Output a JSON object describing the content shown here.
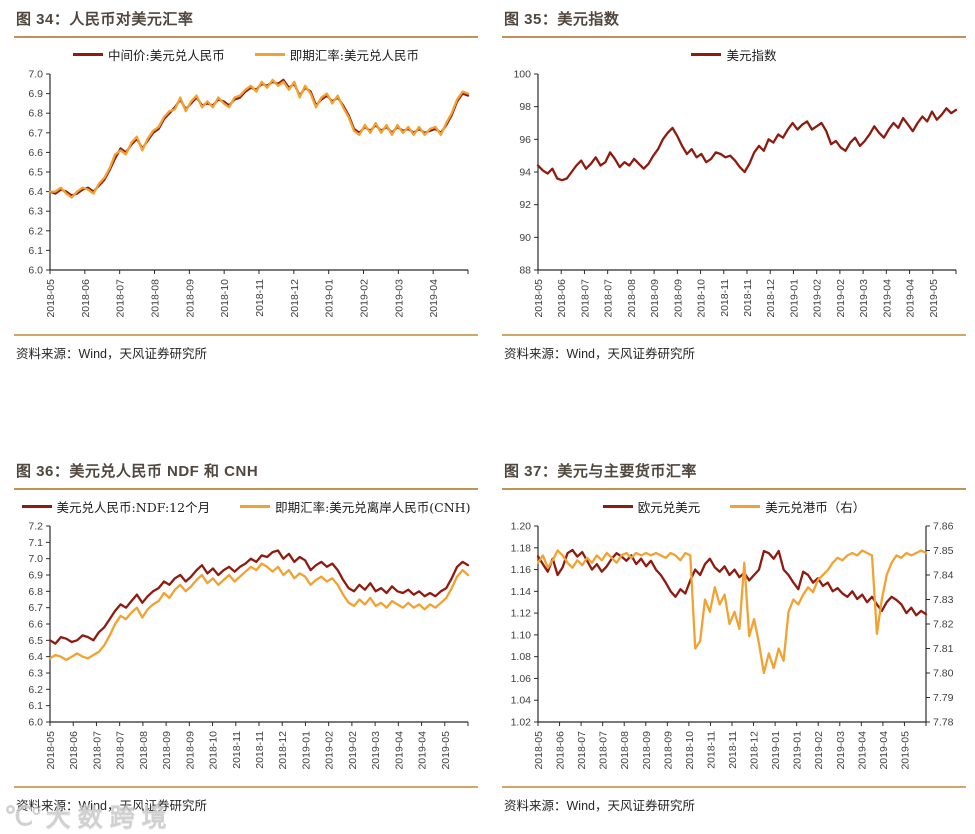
{
  "meta": {
    "source_text": "资料来源：Wind，天风证券研究所",
    "watermark_icon": "℃°",
    "watermark_text": "大数跨境"
  },
  "colors": {
    "dark_red": "#8E1B10",
    "orange": "#F2A232",
    "title_text": "#4F463E",
    "rule_top": "#BE9355",
    "rule_bottom": "#CFA869",
    "axis_line": "#2b2b2b",
    "axis_text": "#3F3F3F"
  },
  "chart_data": [
    {
      "type": "line",
      "figure_label": "图 34：人民币对美元汇率",
      "ylim": [
        6.0,
        7.0
      ],
      "yticks": [
        "7.0",
        "6.9",
        "6.8",
        "6.7",
        "6.6",
        "6.5",
        "6.4",
        "6.3",
        "6.2",
        "6.1",
        "6.0"
      ],
      "x_tick_labels": [
        "2018-05",
        "2018-06",
        "2018-07",
        "2018-08",
        "2018-09",
        "2018-10",
        "2018-11",
        "2018-12",
        "2019-01",
        "2019-02",
        "2019-03",
        "2019-04"
      ],
      "legend_position": "top",
      "grid": false,
      "series": [
        {
          "name": "中间价:美元兑人民币",
          "color": "#8E1B10",
          "axis": "left",
          "values": [
            6.4,
            6.39,
            6.41,
            6.4,
            6.38,
            6.39,
            6.41,
            6.42,
            6.4,
            6.43,
            6.46,
            6.51,
            6.57,
            6.62,
            6.6,
            6.64,
            6.67,
            6.62,
            6.66,
            6.7,
            6.72,
            6.77,
            6.8,
            6.83,
            6.87,
            6.82,
            6.85,
            6.88,
            6.84,
            6.85,
            6.84,
            6.87,
            6.86,
            6.84,
            6.87,
            6.88,
            6.91,
            6.93,
            6.92,
            6.95,
            6.94,
            6.96,
            6.95,
            6.97,
            6.93,
            6.95,
            6.89,
            6.93,
            6.91,
            6.84,
            6.87,
            6.89,
            6.86,
            6.88,
            6.84,
            6.79,
            6.72,
            6.7,
            6.73,
            6.71,
            6.74,
            6.71,
            6.73,
            6.7,
            6.73,
            6.71,
            6.72,
            6.7,
            6.72,
            6.7,
            6.71,
            6.72,
            6.7,
            6.74,
            6.79,
            6.86,
            6.9,
            6.89
          ]
        },
        {
          "name": "即期汇率:美元兑人民币",
          "color": "#F2A232",
          "axis": "left",
          "values": [
            6.4,
            6.4,
            6.42,
            6.39,
            6.37,
            6.4,
            6.42,
            6.41,
            6.39,
            6.44,
            6.47,
            6.52,
            6.59,
            6.61,
            6.59,
            6.65,
            6.68,
            6.61,
            6.67,
            6.71,
            6.73,
            6.78,
            6.81,
            6.82,
            6.88,
            6.81,
            6.86,
            6.89,
            6.83,
            6.86,
            6.83,
            6.88,
            6.85,
            6.83,
            6.88,
            6.89,
            6.92,
            6.94,
            6.91,
            6.96,
            6.93,
            6.97,
            6.94,
            6.96,
            6.92,
            6.96,
            6.88,
            6.94,
            6.9,
            6.83,
            6.88,
            6.9,
            6.85,
            6.89,
            6.83,
            6.78,
            6.71,
            6.69,
            6.74,
            6.7,
            6.75,
            6.7,
            6.74,
            6.69,
            6.74,
            6.7,
            6.73,
            6.69,
            6.73,
            6.69,
            6.72,
            6.73,
            6.69,
            6.75,
            6.8,
            6.87,
            6.91,
            6.9
          ]
        }
      ]
    },
    {
      "type": "line",
      "figure_label": "图 35：美元指数",
      "ylim": [
        88,
        100
      ],
      "yticks": [
        "100",
        "98",
        "96",
        "94",
        "92",
        "90",
        "88"
      ],
      "x_tick_labels": [
        "2018-05",
        "2018-06",
        "2018-07",
        "2018-07",
        "2018-08",
        "2018-09",
        "2018-09",
        "2018-10",
        "2018-11",
        "2018-11",
        "2018-12",
        "2019-01",
        "2019-02",
        "2019-02",
        "2019-03",
        "2019-04",
        "2019-04",
        "2019-05"
      ],
      "legend_position": "top",
      "grid": false,
      "series": [
        {
          "name": "美元指数",
          "color": "#8E1B10",
          "axis": "left",
          "values": [
            94.4,
            94.1,
            93.9,
            94.2,
            93.6,
            93.5,
            93.6,
            94.0,
            94.4,
            94.7,
            94.2,
            94.5,
            94.9,
            94.4,
            94.6,
            95.2,
            94.8,
            94.3,
            94.6,
            94.4,
            94.8,
            94.5,
            94.2,
            94.5,
            95.0,
            95.4,
            96.0,
            96.4,
            96.7,
            96.2,
            95.6,
            95.1,
            95.4,
            94.9,
            95.1,
            94.6,
            94.8,
            95.2,
            95.1,
            94.9,
            95.0,
            94.7,
            94.3,
            94.0,
            94.5,
            95.2,
            95.6,
            95.3,
            96.0,
            95.8,
            96.3,
            96.1,
            96.6,
            97.0,
            96.6,
            96.9,
            97.1,
            96.6,
            96.8,
            97.0,
            96.5,
            95.7,
            95.9,
            95.5,
            95.3,
            95.8,
            96.1,
            95.6,
            95.9,
            96.3,
            96.8,
            96.4,
            96.1,
            96.6,
            97.0,
            96.7,
            97.3,
            96.9,
            96.5,
            97.0,
            97.4,
            97.1,
            97.7,
            97.2,
            97.5,
            97.9,
            97.6,
            97.8
          ]
        }
      ]
    },
    {
      "type": "line",
      "figure_label": "图 36：美元兑人民币 NDF  和 CNH",
      "ylim": [
        6.0,
        7.2
      ],
      "yticks": [
        "7.2",
        "7.1",
        "7.0",
        "6.9",
        "6.8",
        "6.7",
        "6.6",
        "6.5",
        "6.4",
        "6.3",
        "6.2",
        "6.1",
        "6.0"
      ],
      "x_tick_labels": [
        "2018-05",
        "2018-06",
        "2018-07",
        "2018-07",
        "2018-08",
        "2018-09",
        "2018-09",
        "2018-10",
        "2018-11",
        "2018-11",
        "2018-12",
        "2019-01",
        "2019-02",
        "2019-02",
        "2019-03",
        "2019-04",
        "2019-04",
        "2019-05"
      ],
      "legend_position": "top",
      "grid": false,
      "series": [
        {
          "name": "美元兑人民币:NDF:12个月",
          "color": "#8E1B10",
          "axis": "left",
          "values": [
            6.5,
            6.48,
            6.52,
            6.51,
            6.49,
            6.5,
            6.53,
            6.52,
            6.5,
            6.55,
            6.58,
            6.63,
            6.68,
            6.72,
            6.7,
            6.74,
            6.78,
            6.73,
            6.77,
            6.8,
            6.82,
            6.86,
            6.84,
            6.88,
            6.9,
            6.86,
            6.89,
            6.93,
            6.96,
            6.91,
            6.94,
            6.9,
            6.93,
            6.95,
            6.92,
            6.95,
            6.97,
            7.0,
            6.98,
            7.02,
            7.01,
            7.04,
            7.05,
            7.0,
            7.03,
            6.98,
            7.01,
            6.99,
            6.93,
            6.96,
            6.98,
            6.95,
            6.97,
            6.93,
            6.87,
            6.82,
            6.8,
            6.84,
            6.81,
            6.85,
            6.8,
            6.82,
            6.79,
            6.83,
            6.8,
            6.79,
            6.81,
            6.78,
            6.8,
            6.77,
            6.79,
            6.77,
            6.8,
            6.82,
            6.88,
            6.95,
            6.98,
            6.96
          ]
        },
        {
          "name": "即期汇率:美元兑离岸人民币(CNH)",
          "color": "#F2A232",
          "axis": "left",
          "values": [
            6.39,
            6.41,
            6.4,
            6.38,
            6.4,
            6.42,
            6.4,
            6.39,
            6.41,
            6.43,
            6.47,
            6.53,
            6.6,
            6.65,
            6.63,
            6.67,
            6.7,
            6.64,
            6.69,
            6.72,
            6.74,
            6.79,
            6.76,
            6.81,
            6.84,
            6.8,
            6.83,
            6.87,
            6.9,
            6.85,
            6.88,
            6.84,
            6.87,
            6.9,
            6.86,
            6.89,
            6.92,
            6.95,
            6.93,
            6.97,
            6.95,
            6.92,
            6.95,
            6.9,
            6.93,
            6.88,
            6.91,
            6.89,
            6.84,
            6.87,
            6.89,
            6.86,
            6.88,
            6.84,
            6.78,
            6.73,
            6.71,
            6.75,
            6.72,
            6.76,
            6.71,
            6.73,
            6.7,
            6.74,
            6.72,
            6.7,
            6.73,
            6.7,
            6.72,
            6.69,
            6.72,
            6.7,
            6.73,
            6.76,
            6.82,
            6.89,
            6.93,
            6.9
          ]
        }
      ]
    },
    {
      "type": "line",
      "figure_label": "图 37：美元与主要货币汇率",
      "ylim": [
        1.02,
        1.2
      ],
      "yticks": [
        "1.20",
        "1.18",
        "1.16",
        "1.14",
        "1.12",
        "1.10",
        "1.08",
        "1.06",
        "1.04",
        "1.02"
      ],
      "ylim_right": [
        7.78,
        7.86
      ],
      "yticks_right": [
        "7.86",
        "7.85",
        "7.84",
        "7.83",
        "7.82",
        "7.81",
        "7.80",
        "7.79",
        "7.78"
      ],
      "x_tick_labels": [
        "2018-05",
        "2018-06",
        "2018-07",
        "2018-07",
        "2018-08",
        "2018-09",
        "2018-09",
        "2018-10",
        "2018-11",
        "2018-11",
        "2018-12",
        "2019-01",
        "2019-01",
        "2019-02",
        "2019-03",
        "2019-04",
        "2019-04",
        "2019-05"
      ],
      "legend_position": "top",
      "grid": false,
      "series": [
        {
          "name": "欧元兑美元",
          "color": "#8E1B10",
          "axis": "left",
          "values": [
            1.172,
            1.165,
            1.158,
            1.17,
            1.155,
            1.162,
            1.175,
            1.178,
            1.172,
            1.176,
            1.168,
            1.16,
            1.165,
            1.158,
            1.163,
            1.17,
            1.175,
            1.172,
            1.168,
            1.173,
            1.165,
            1.17,
            1.163,
            1.168,
            1.16,
            1.155,
            1.148,
            1.14,
            1.135,
            1.142,
            1.138,
            1.15,
            1.16,
            1.155,
            1.165,
            1.17,
            1.162,
            1.158,
            1.163,
            1.155,
            1.16,
            1.153,
            1.157,
            1.15,
            1.155,
            1.16,
            1.177,
            1.175,
            1.17,
            1.177,
            1.16,
            1.155,
            1.148,
            1.142,
            1.158,
            1.155,
            1.148,
            1.152,
            1.145,
            1.148,
            1.14,
            1.143,
            1.138,
            1.135,
            1.14,
            1.133,
            1.137,
            1.13,
            1.135,
            1.128,
            1.122,
            1.13,
            1.135,
            1.132,
            1.128,
            1.12,
            1.125,
            1.118,
            1.122,
            1.119
          ]
        },
        {
          "name": "美元兑港币（右）",
          "color": "#F2A232",
          "axis": "right",
          "values": [
            7.845,
            7.848,
            7.843,
            7.846,
            7.85,
            7.848,
            7.845,
            7.843,
            7.846,
            7.844,
            7.847,
            7.845,
            7.848,
            7.846,
            7.849,
            7.847,
            7.845,
            7.848,
            7.849,
            7.847,
            7.849,
            7.848,
            7.849,
            7.848,
            7.849,
            7.848,
            7.847,
            7.849,
            7.848,
            7.846,
            7.849,
            7.848,
            7.81,
            7.813,
            7.83,
            7.825,
            7.835,
            7.828,
            7.832,
            7.82,
            7.825,
            7.818,
            7.845,
            7.815,
            7.822,
            7.812,
            7.8,
            7.808,
            7.802,
            7.81,
            7.805,
            7.825,
            7.83,
            7.828,
            7.832,
            7.835,
            7.833,
            7.838,
            7.84,
            7.842,
            7.845,
            7.847,
            7.846,
            7.848,
            7.849,
            7.848,
            7.85,
            7.849,
            7.848,
            7.816,
            7.83,
            7.84,
            7.845,
            7.848,
            7.847,
            7.849,
            7.848,
            7.849,
            7.85,
            7.849
          ]
        }
      ]
    }
  ]
}
